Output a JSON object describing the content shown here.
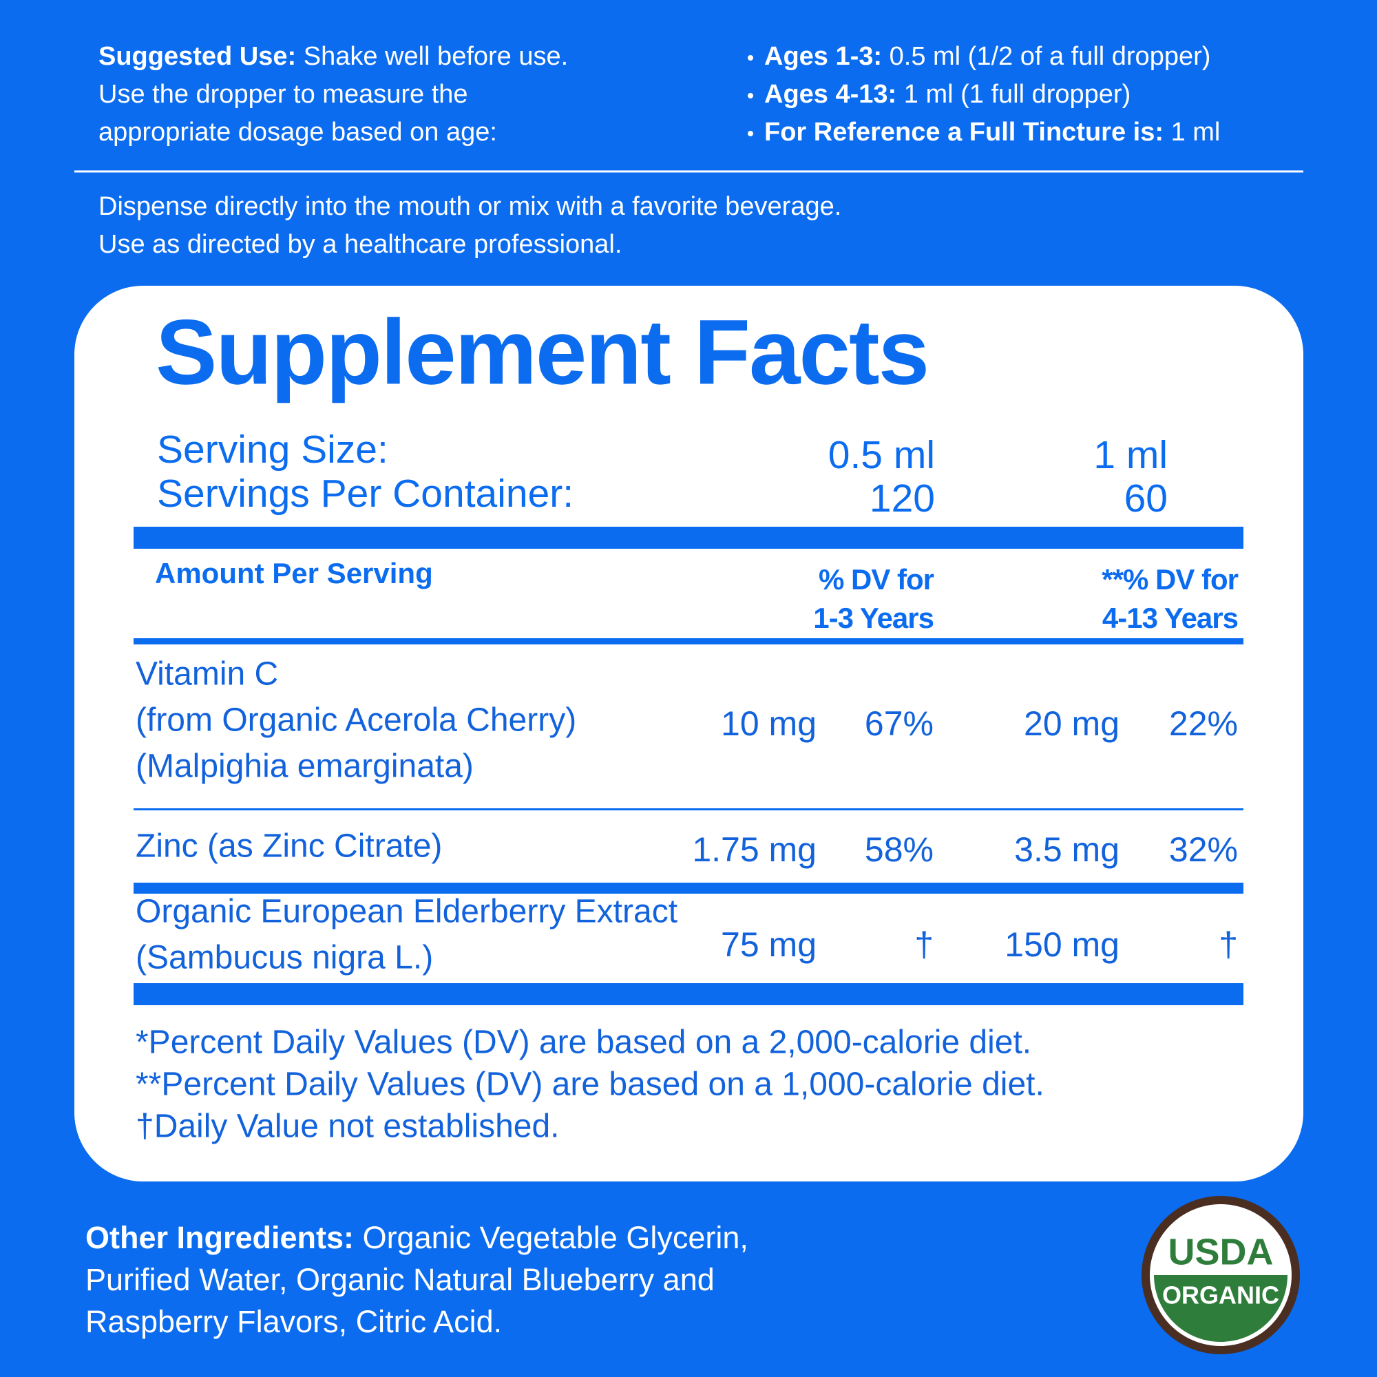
{
  "suggested_use": {
    "label": "Suggested Use:",
    "lines": [
      "Shake well before use.",
      "Use the dropper to measure the",
      "appropriate dosage based on age:"
    ]
  },
  "dosage": [
    {
      "label": "Ages 1-3:",
      "text": "0.5 ml (1/2 of a full dropper)"
    },
    {
      "label": "Ages 4-13:",
      "text": "1 ml (1 full dropper)"
    },
    {
      "label": "For Reference a Full Tincture is:",
      "text": "1 ml"
    }
  ],
  "directions": [
    "Dispense directly into the mouth or mix with a favorite beverage.",
    "Use as directed by a healthcare professional."
  ],
  "facts": {
    "title": "Supplement Facts",
    "serving_size_label": "Serving Size:",
    "servings_per_container_label": "Servings Per Container:",
    "serving_sizes": [
      "0.5 ml",
      "1 ml"
    ],
    "servings_per_container": [
      "120",
      "60"
    ],
    "amount_header": "Amount Per Serving",
    "dv_headers": [
      [
        "% DV for",
        "1-3 Years"
      ],
      [
        "**% DV for",
        "4-13 Years"
      ]
    ],
    "rows": [
      {
        "name": [
          "Vitamin C",
          "(from Organic Acerola Cherry)",
          "(Malpighia emarginata)"
        ],
        "cells": [
          "10 mg",
          "67%",
          "20 mg",
          "22%"
        ]
      },
      {
        "name": [
          "Zinc (as Zinc Citrate)"
        ],
        "cells": [
          "1.75 mg",
          "58%",
          "3.5 mg",
          "32%"
        ]
      },
      {
        "name": [
          "Organic European Elderberry Extract",
          "(Sambucus nigra L.)"
        ],
        "cells": [
          "75 mg",
          "†",
          "150 mg",
          "†"
        ]
      }
    ],
    "footnotes": [
      "*Percent Daily Values (DV) are based on a 2,000-calorie diet.",
      "**Percent Daily Values (DV) are based on a 1,000-calorie diet.",
      "†Daily Value not established."
    ]
  },
  "other_ingredients": {
    "label": "Other Ingredients:",
    "lines": [
      "Organic Vegetable Glycerin,",
      "Purified Water, Organic Natural Blueberry and",
      "Raspberry Flavors, Citric Acid."
    ]
  },
  "logo": [
    "USDA",
    "ORGANIC"
  ]
}
